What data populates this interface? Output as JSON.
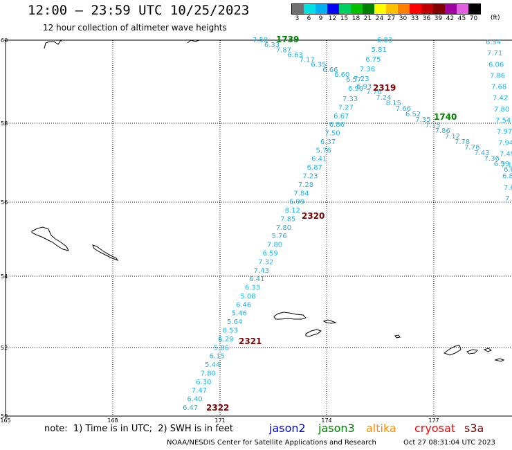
{
  "header": {
    "title": "12:00 – 23:59 UTC 10/25/2023",
    "subtitle": "12 hour collection of altimeter wave heights"
  },
  "legend": {
    "labels": [
      "3",
      "6",
      "9",
      "12",
      "15",
      "18",
      "21",
      "24",
      "27",
      "30",
      "33",
      "36",
      "39",
      "42",
      "45",
      "70"
    ],
    "unit": "(ft)",
    "colors": [
      "#707070",
      "#00e0e0",
      "#00b0f0",
      "#0000ff",
      "#00d060",
      "#00c000",
      "#008000",
      "#ffff00",
      "#ffc000",
      "#ff8000",
      "#ff0000",
      "#c00000",
      "#800000",
      "#a000a0",
      "#e060e0",
      "#000000"
    ]
  },
  "map": {
    "lat_ticks": [
      "60",
      "58",
      "56",
      "54",
      "52",
      "50"
    ],
    "lon_ticks": [
      "165",
      "168",
      "171",
      "174",
      "177"
    ],
    "wave_color": "#1eb4e6",
    "passes": [
      {
        "id": "pass1",
        "points": [
          "7.50",
          "6.33",
          "7.87",
          "6.63",
          "7.17",
          "6.35",
          "6.66",
          "6.60",
          "6.57",
          "6.93",
          "7.76",
          "7.24",
          "8.15",
          "7.66",
          "6.52",
          "7.35",
          "7.15",
          "7.86",
          "7.12",
          "7.78",
          "7.76",
          "7.43",
          "7.36",
          "6.59",
          "6.60"
        ]
      },
      {
        "id": "pass2",
        "points": [
          "6.83",
          "5.81",
          "6.75",
          "7.36",
          "7.23",
          "6.90",
          "7.33",
          "7.27",
          "6.67",
          "6.86",
          "7.50",
          "6.37",
          "5.76",
          "6.41",
          "6.87",
          "7.23",
          "7.28",
          "7.84",
          "6.99",
          "8.12",
          "7.85",
          "7.80",
          "5.76",
          "7.80",
          "6.59",
          "7.32",
          "7.43",
          "6.41",
          "6.33",
          "5.08",
          "6.46",
          "5.46",
          "5.64",
          "6.53",
          "6.29",
          "5.86",
          "6.15",
          "5.44",
          "7.80",
          "6.30",
          "7.47",
          "6.40",
          "6.47"
        ]
      },
      {
        "id": "pass3",
        "points": [
          "6.54",
          "7.71",
          "6.06",
          "7.86",
          "7.68",
          "7.42",
          "7.80",
          "7.54",
          "7.97",
          "7.94",
          "7.49",
          "7.12",
          "6.82",
          "7.64",
          "7.66"
        ]
      }
    ],
    "time_labels": [
      {
        "text": "1739",
        "color": "#008000"
      },
      {
        "text": "2319",
        "color": "#800000"
      },
      {
        "text": "1740",
        "color": "#008000"
      },
      {
        "text": "2320",
        "color": "#800000"
      },
      {
        "text": "2321",
        "color": "#800000"
      },
      {
        "text": "2322",
        "color": "#800000"
      }
    ]
  },
  "footer": {
    "note": "note:  1) Time is in UTC;  2) SWH is in feet",
    "satellites": [
      {
        "name": "jason2",
        "color": "#0000ff"
      },
      {
        "name": "jason3",
        "color": "#008000"
      },
      {
        "name": "altika",
        "color": "#ff8c00"
      },
      {
        "name": "cryosat",
        "color": "#ff0000"
      },
      {
        "name": "s3a",
        "color": "#800000"
      }
    ],
    "credit": "NOAA/NESDIS Center for Satellite Applications and Research",
    "timestamp": "Oct 27 08:31:04 UTC 2023"
  }
}
